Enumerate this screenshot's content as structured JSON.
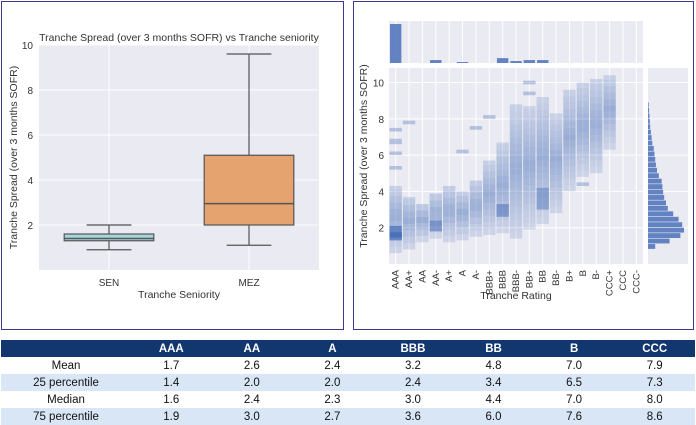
{
  "chart_data": [
    {
      "type": "box",
      "title": "Tranche Spread (over 3 months SOFR) vs Tranche seniority",
      "xlabel": "Tranche Seniority",
      "ylabel": "Tranche Spread (over 3 months SOFR)",
      "ylim": [
        0,
        10
      ],
      "yticks": [
        "2",
        "4",
        "6",
        "8",
        "10"
      ],
      "grid": true,
      "categories": [
        "SEN",
        "MEZ"
      ],
      "boxes": [
        {
          "name": "SEN",
          "whisker_low": 0.9,
          "q1": 1.3,
          "median": 1.4,
          "q3": 1.6,
          "whisker_high": 2.0,
          "color": "#a6d6dd"
        },
        {
          "name": "MEZ",
          "whisker_low": 1.1,
          "q1": 2.0,
          "median": 2.95,
          "q3": 5.1,
          "whisker_high": 9.6,
          "color": "#e5a36f"
        }
      ]
    },
    {
      "type": "heatmap",
      "xlabel": "Tranche Rating",
      "ylabel": "Tranche Spread (over 3 months SOFR)",
      "ylim": [
        0,
        10.8
      ],
      "yticks": [
        "2",
        "4",
        "6",
        "8",
        "10"
      ],
      "categories": [
        "AAA",
        "AA+",
        "AA",
        "AA-",
        "A+",
        "A",
        "A-",
        "BBB+",
        "BBB",
        "BBB-",
        "BB+",
        "BB",
        "BB-",
        "B+",
        "B",
        "B-",
        "CCC+",
        "CCC",
        "CCC-"
      ],
      "marginal_x_counts": [
        40,
        0,
        0,
        3,
        0,
        1,
        0,
        0,
        5,
        2,
        3,
        3,
        0,
        0,
        0,
        0,
        0,
        0,
        0
      ],
      "color": "#4a70b8"
    }
  ],
  "table": {
    "columns": [
      "",
      "AAA",
      "AA",
      "A",
      "BBB",
      "BB",
      "B",
      "CCC"
    ],
    "rows": [
      {
        "label": "Mean",
        "values": [
          "1.7",
          "2.6",
          "2.4",
          "3.2",
          "4.8",
          "7.0",
          "7.9"
        ]
      },
      {
        "label": "25 percentile",
        "values": [
          "1.4",
          "2.0",
          "2.0",
          "2.4",
          "3.4",
          "6.5",
          "7.3"
        ]
      },
      {
        "label": "Median",
        "values": [
          "1.6",
          "2.4",
          "2.3",
          "3.0",
          "4.4",
          "7.0",
          "8.0"
        ]
      },
      {
        "label": "75 percentile",
        "values": [
          "1.9",
          "3.0",
          "2.7",
          "3.6",
          "6.0",
          "7.6",
          "8.6"
        ]
      }
    ]
  }
}
